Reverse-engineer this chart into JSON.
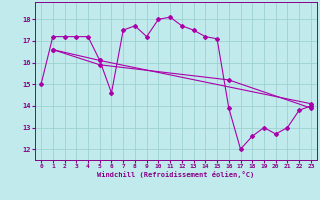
{
  "xlabel": "Windchill (Refroidissement éolien,°C)",
  "xlim": [
    -0.5,
    23.5
  ],
  "ylim": [
    11.5,
    18.8
  ],
  "yticks": [
    12,
    13,
    14,
    15,
    16,
    17,
    18
  ],
  "xticks": [
    0,
    1,
    2,
    3,
    4,
    5,
    6,
    7,
    8,
    9,
    10,
    11,
    12,
    13,
    14,
    15,
    16,
    17,
    18,
    19,
    20,
    21,
    22,
    23
  ],
  "bg_color": "#c0eaec",
  "grid_color": "#99cccc",
  "line_color": "#aa00aa",
  "line1_x": [
    0,
    1,
    2,
    3,
    4,
    5,
    6,
    7,
    8,
    9,
    10,
    11,
    12,
    13,
    14,
    15,
    16,
    17,
    18,
    19,
    20,
    21,
    22,
    23
  ],
  "line1_y": [
    15.0,
    17.2,
    17.2,
    17.2,
    17.2,
    16.1,
    14.6,
    17.5,
    17.7,
    17.2,
    18.0,
    18.1,
    17.7,
    17.5,
    17.2,
    17.1,
    13.9,
    12.0,
    12.6,
    13.0,
    12.7,
    13.0,
    13.8,
    14.0
  ],
  "line2_x": [
    1,
    5,
    23
  ],
  "line2_y": [
    16.6,
    16.1,
    14.1
  ],
  "line3_x": [
    1,
    5,
    16,
    23
  ],
  "line3_y": [
    16.6,
    15.9,
    15.2,
    13.9
  ]
}
